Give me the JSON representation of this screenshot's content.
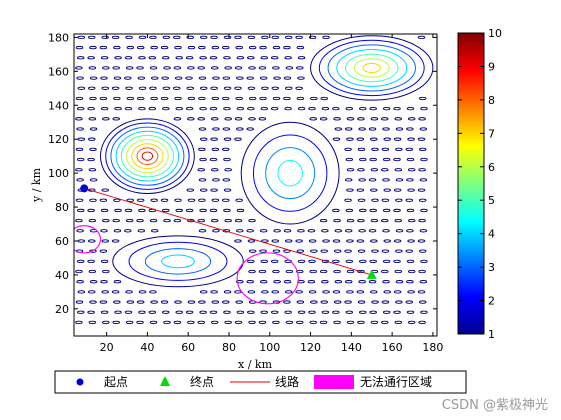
{
  "chart_data": {
    "type": "contour",
    "xlabel": "x / km",
    "ylabel": "y / km",
    "xlim": [
      4,
      182
    ],
    "ylim": [
      4,
      182
    ],
    "xticks": [
      20,
      40,
      60,
      80,
      100,
      120,
      140,
      160,
      180
    ],
    "yticks": [
      20,
      40,
      60,
      80,
      100,
      120,
      140,
      160,
      180
    ],
    "colorbar": {
      "min": 1,
      "max": 10,
      "ticks": [
        1,
        2,
        3,
        4,
        5,
        6,
        7,
        8,
        9,
        10
      ],
      "colormap": "jet"
    },
    "hills": [
      {
        "x": 150,
        "y": 162,
        "rx": 30,
        "ry": 19,
        "peak": 7
      },
      {
        "x": 40,
        "y": 110,
        "rx": 23,
        "ry": 22,
        "peak": 9
      },
      {
        "x": 110,
        "y": 100,
        "rx": 24,
        "ry": 30,
        "peak": 4.5
      },
      {
        "x": 55,
        "y": 48,
        "rx": 32,
        "ry": 15,
        "peak": 4
      }
    ],
    "start_point": {
      "x": 9,
      "y": 91
    },
    "end_point": {
      "x": 150,
      "y": 40
    },
    "route": {
      "x": [
        9,
        150
      ],
      "y": [
        91,
        40
      ]
    },
    "no_go_zones": [
      {
        "x": 9,
        "y": 61,
        "r": 8
      },
      {
        "x": 99,
        "y": 38,
        "r": 15
      }
    ],
    "legend": {
      "placement": "bottom",
      "entries": [
        {
          "label": "起点",
          "marker": "circle",
          "color": "#0000dd"
        },
        {
          "label": "终点",
          "marker": "triangle",
          "color": "#00dd00"
        },
        {
          "label": "线路",
          "marker": "line",
          "color": "#dd0000"
        },
        {
          "label": "无法通行区域",
          "marker": "patch",
          "color": "#ff00ff"
        }
      ]
    }
  },
  "watermark": "CSDN @紫极神光"
}
